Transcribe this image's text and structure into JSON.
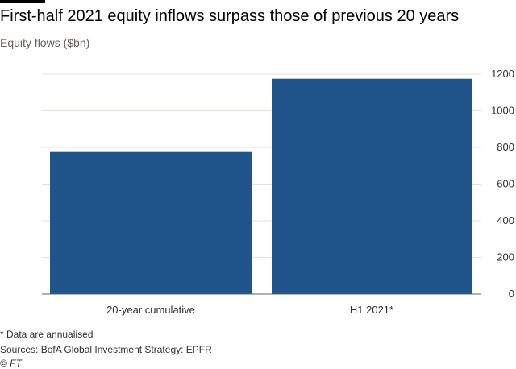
{
  "header": {
    "title": "First-half 2021 equity inflows surpass those of previous 20 years",
    "subtitle": "Equity flows ($bn)"
  },
  "footer": {
    "note": "* Data are annualised",
    "source": "Sources: BofA Global Investment Strategy: EPFR",
    "copyright": "© FT"
  },
  "colors": {
    "bar": "#1f558b",
    "grid": "#e6e0da",
    "axis": "#66605c"
  },
  "chart_data": {
    "type": "bar",
    "title": "First-half 2021 equity inflows surpass those of previous 20 years",
    "subtitle": "Equity flows ($bn)",
    "categories": [
      "20-year cumulative",
      "H1 2021*"
    ],
    "values": [
      775,
      1175
    ],
    "ylim": [
      0,
      1200
    ],
    "yticks": [
      0,
      200,
      400,
      600,
      800,
      1000,
      1200
    ],
    "y_axis_position": "right",
    "grid": true,
    "legend": "none"
  }
}
